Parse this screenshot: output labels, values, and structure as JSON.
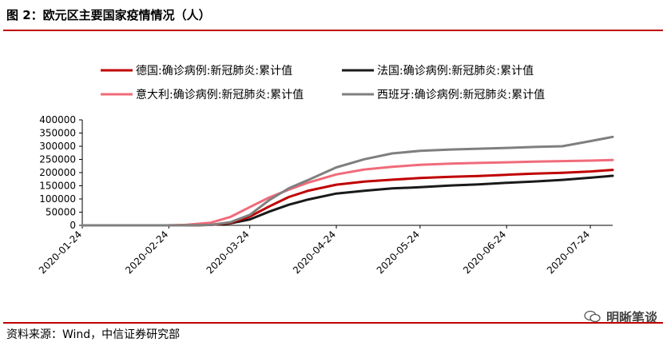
{
  "header": {
    "title": "图 2：欧元区主要国家疫情情况（人）"
  },
  "footer": {
    "source": "资料来源：Wind，中信证券研究部",
    "watermark": "明晰笔谈"
  },
  "colors": {
    "accent": "#c00000",
    "germany": "#c00000",
    "france": "#1a1a1a",
    "italy": "#f06b7a",
    "spain": "#7f7f7f"
  },
  "chart_data": {
    "type": "line",
    "title": "",
    "xlabel": "",
    "ylabel": "",
    "ylim": [
      0,
      400000
    ],
    "yticks": [
      "400000",
      "350000",
      "300000",
      "250000",
      "200000",
      "150000",
      "100000",
      "50000",
      "0"
    ],
    "xticks": [
      "2020-01-24",
      "2020-02-24",
      "2020-03-24",
      "2020-04-24",
      "2020-05-24",
      "2020-06-24",
      "2020-07-24"
    ],
    "xlim": [
      "2020-01-24",
      "2020-08-01"
    ],
    "grid": false,
    "legend": "top",
    "x": [
      "2020-01-24",
      "2020-02-24",
      "2020-03-01",
      "2020-03-10",
      "2020-03-17",
      "2020-03-24",
      "2020-03-31",
      "2020-04-07",
      "2020-04-14",
      "2020-04-24",
      "2020-05-04",
      "2020-05-14",
      "2020-05-24",
      "2020-06-04",
      "2020-06-14",
      "2020-06-24",
      "2020-07-04",
      "2020-07-14",
      "2020-07-24",
      "2020-08-01"
    ],
    "series": [
      {
        "name": "德国:确诊病例:新冠肺炎:累计值",
        "color": "#c00000",
        "values": [
          0,
          16,
          130,
          1600,
          9400,
          32900,
          71800,
          107700,
          131400,
          154200,
          166100,
          173100,
          179400,
          183800,
          187200,
          191900,
          196300,
          199400,
          204200,
          210400
        ]
      },
      {
        "name": "法国:确诊病例:新冠肺炎:累计值",
        "color": "#1a1a1a",
        "values": [
          0,
          12,
          130,
          1800,
          7700,
          22300,
          52100,
          78200,
          98100,
          120600,
          131300,
          140000,
          144500,
          151300,
          155600,
          161300,
          166400,
          172400,
          180500,
          187900
        ]
      },
      {
        "name": "意大利:确诊病例:新冠肺炎:累计值",
        "color": "#f06b7a",
        "values": [
          0,
          200,
          1700,
          10100,
          31500,
          69200,
          105800,
          135600,
          162500,
          192900,
          211900,
          222100,
          229300,
          234000,
          236700,
          239000,
          241600,
          243700,
          245600,
          247800
        ]
      },
      {
        "name": "西班牙:确诊病例:新冠肺炎:累计值",
        "color": "#7f7f7f",
        "values": [
          0,
          2,
          84,
          1700,
          11700,
          39700,
          95900,
          140500,
          172500,
          219800,
          250600,
          272600,
          282400,
          287700,
          290700,
          293600,
          297200,
          300100,
          319500,
          335600
        ]
      }
    ]
  }
}
